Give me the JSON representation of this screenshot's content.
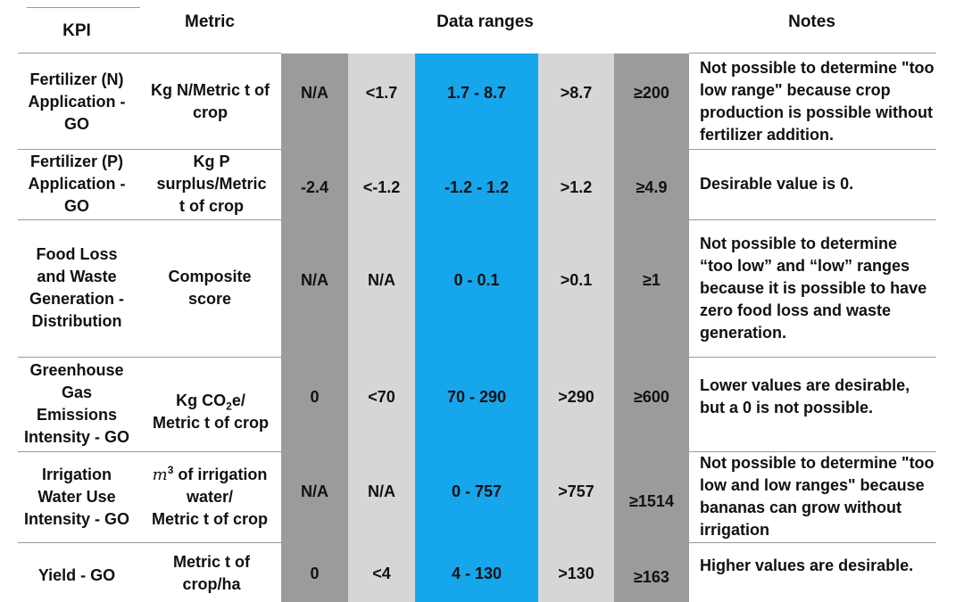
{
  "headers": {
    "kpi": "KPI",
    "metric": "Metric",
    "ranges": "Data ranges",
    "notes": "Notes"
  },
  "colors": {
    "dark_gray": "#9b9b9b",
    "light_gray": "#d6d6d6",
    "blue": "#16a6eb",
    "rule": "#9a9a9a"
  },
  "rows": [
    {
      "kpi": "Fertilizer (N) Application - GO",
      "metric": "Kg N/Metric t of crop",
      "ranges": [
        "N/A",
        "<1.7",
        "1.7 - 8.7",
        ">8.7",
        "≥200"
      ],
      "note": "Not possible to determine \"too low range\" because crop production is possible without fertilizer addition."
    },
    {
      "kpi": "Fertilizer (P) Application - GO",
      "metric": "Kg P surplus/Metric t of crop",
      "ranges": [
        "-2.4",
        "<-1.2",
        "-1.2 - 1.2",
        ">1.2",
        "≥4.9"
      ],
      "note": "Desirable value is 0."
    },
    {
      "kpi": "Food Loss and Waste Generation - Distribution",
      "metric": "Composite score",
      "ranges": [
        "N/A",
        "N/A",
        "0 - 0.1",
        ">0.1",
        "≥1"
      ],
      "note": "Not possible to determine “too low” and “low” ranges because it is possible to have zero food loss and waste generation."
    },
    {
      "kpi": "Greenhouse Gas Emissions Intensity - GO",
      "metric_parts": {
        "a": "Kg CO",
        "sub": "2",
        "b": "e/",
        "c": "Metric t of crop"
      },
      "ranges": [
        "0",
        "<70",
        "70 - 290",
        ">290",
        "≥600"
      ],
      "note": "Lower values are desirable, but a 0 is not possible."
    },
    {
      "kpi": "Irrigation Water Use Intensity - GO",
      "metric_parts": {
        "m": "m",
        "sup": "3",
        "a": " of irrigation water/",
        "c": "Metric t of crop"
      },
      "ranges": [
        "N/A",
        "N/A",
        "0 - 757",
        ">757",
        "≥1514"
      ],
      "note": "Not possible to determine \"too low and low ranges\" because bananas can grow without irrigation"
    },
    {
      "kpi": "Yield - GO",
      "metric": "Metric t of crop/ha",
      "ranges": [
        "0",
        "<4",
        "4 - 130",
        ">130",
        "≥163"
      ],
      "note": "Higher values are desirable."
    }
  ]
}
